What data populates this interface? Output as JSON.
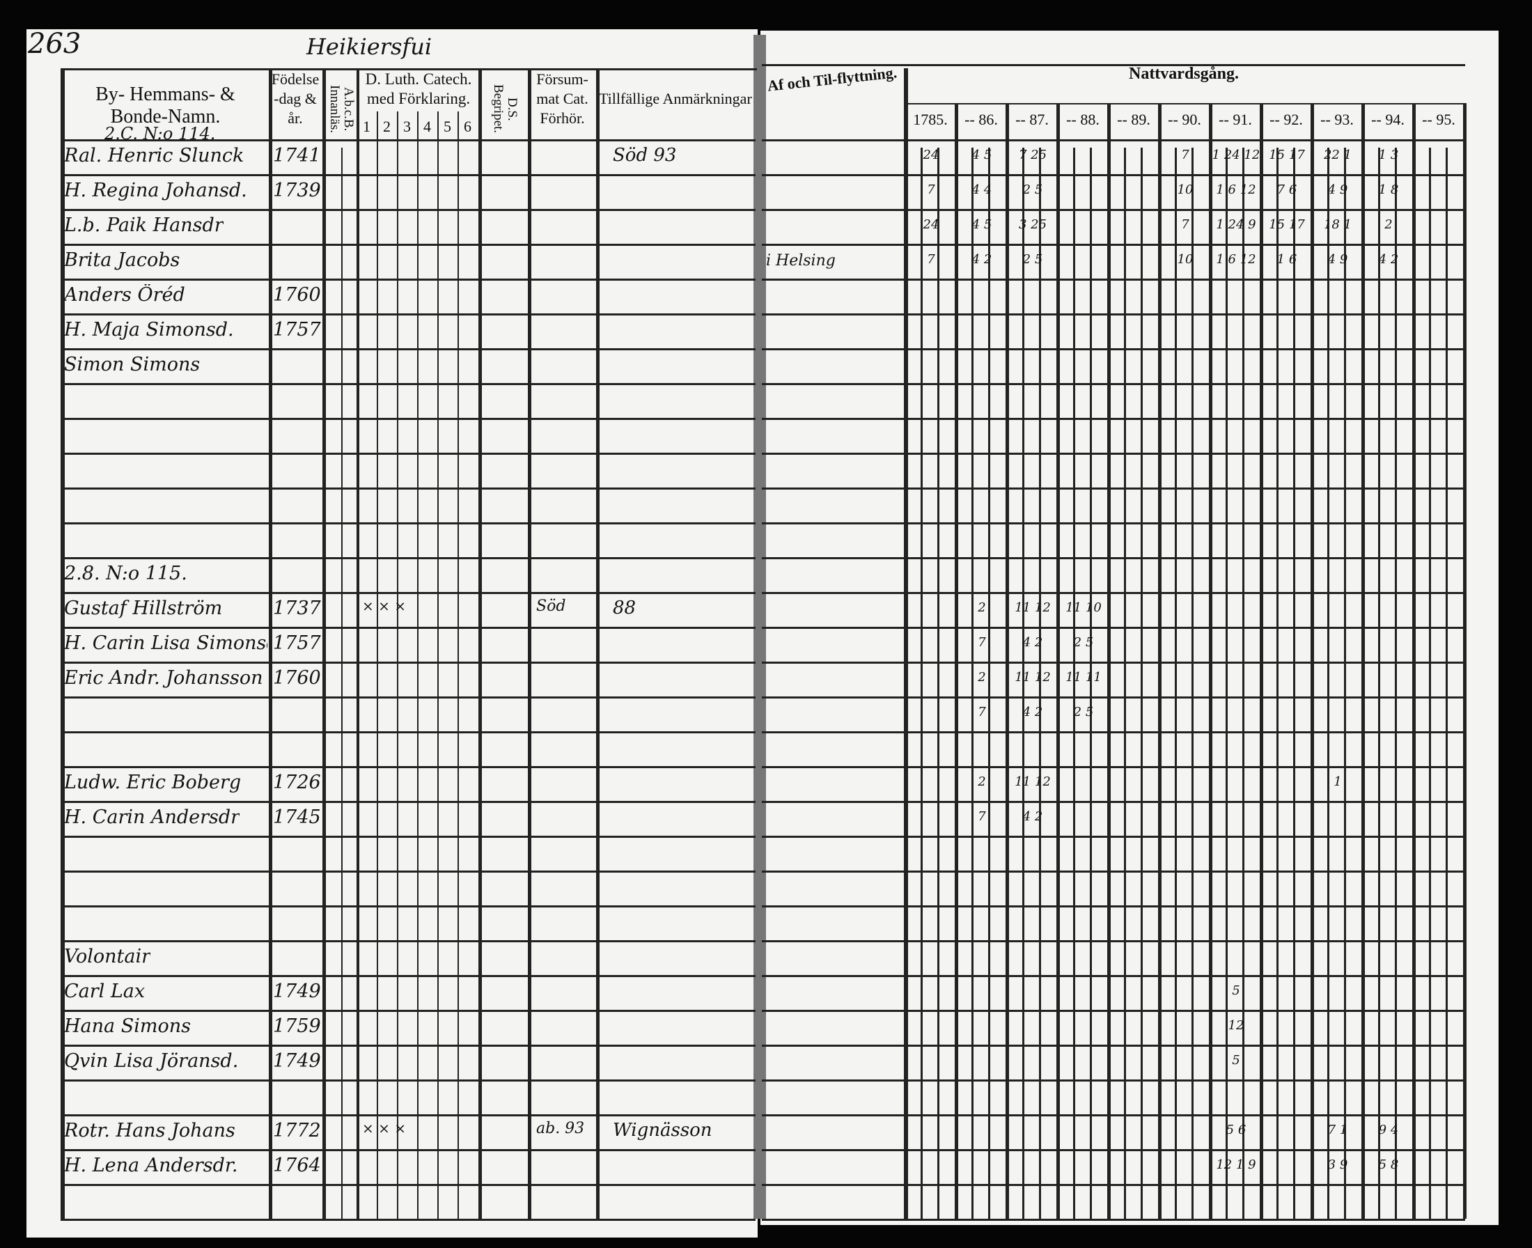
{
  "left_page": {
    "page_number": "263",
    "parish_title": "Heikiersfui",
    "headers": {
      "names": "By- Hemmans- & Bonde-Namn.",
      "birth": "Födelse-dag & år.",
      "abc": "A.b.c.B. Innanläs.",
      "catechism": "D. Luth. Catech. med Förklaring.",
      "catechism_parts": [
        "1",
        "2",
        "3",
        "4",
        "5",
        "6"
      ],
      "ds": "D.S. Begripet.",
      "missed": "Försum-mat Cat. Förhör.",
      "remarks": "Tillfällige Anmärkningar"
    },
    "household_heading": "2.C. N:o 114."
  },
  "right_page": {
    "headers": {
      "moving": "Af och Til-flyttning.",
      "communion": "Nattvardsgång.",
      "years": [
        "1785.",
        "-- 86.",
        "-- 87.",
        "-- 88.",
        "-- 89.",
        "-- 90.",
        "-- 91.",
        "-- 92.",
        "-- 93.",
        "-- 94.",
        "-- 95."
      ]
    }
  },
  "rows": [
    {
      "name": "Ral. Henric Slunck",
      "year": "1741",
      "remarks": "Söd 93",
      "move": "",
      "communion": [
        "24",
        "4 5",
        "7 25",
        "",
        "",
        "7",
        "1 24 12",
        "15 17",
        "22 1",
        "1 3",
        ""
      ]
    },
    {
      "name": "H. Regina Johansd.",
      "year": "1739",
      "remarks": "",
      "move": "",
      "communion": [
        "7",
        "4 4",
        "2 5",
        "",
        "",
        "10",
        "1 6 12",
        "7 6",
        "4 9",
        "1 8",
        ""
      ]
    },
    {
      "name": "L.b. Paik Hansdr",
      "year": "",
      "remarks": "",
      "move": "",
      "communion": [
        "24",
        "4 5",
        "3 25",
        "",
        "",
        "7",
        "1 24 9",
        "15 17",
        "18 1",
        "2",
        ""
      ]
    },
    {
      "name": "Brita Jacobs",
      "year": "",
      "remarks": "",
      "move": "i Helsing",
      "communion": [
        "7",
        "4 2",
        "2 5",
        "",
        "",
        "10",
        "1 6 12",
        "1 6",
        "4 9",
        "4 2",
        ""
      ]
    },
    {
      "name": "Anders Öréd",
      "year": "1760",
      "remarks": "",
      "move": "",
      "communion": []
    },
    {
      "name": "H. Maja Simonsd.",
      "year": "1757",
      "remarks": "",
      "move": "",
      "communion": []
    },
    {
      "name": "Simon Simons",
      "year": "",
      "remarks": "",
      "move": "",
      "communion": []
    },
    {
      "name": "",
      "year": "",
      "remarks": "",
      "move": "",
      "communion": []
    },
    {
      "name": "",
      "year": "",
      "remarks": "",
      "move": "",
      "communion": []
    },
    {
      "name": "",
      "year": "",
      "remarks": "",
      "move": "",
      "communion": []
    },
    {
      "name": "",
      "year": "",
      "remarks": "",
      "move": "",
      "communion": []
    },
    {
      "name": "",
      "year": "",
      "remarks": "",
      "move": "",
      "communion": []
    },
    {
      "name": "2.8. N:o 115.",
      "year": "",
      "remarks": "",
      "move": "",
      "communion": []
    },
    {
      "name": "Gustaf Hillström",
      "year": "1737",
      "catech": "×   ×  ×",
      "missed": "Söd",
      "remarks": "88",
      "move": "",
      "communion": [
        "",
        "2",
        "11 12",
        "11 10"
      ]
    },
    {
      "name": "H. Carin Lisa Simonsd.",
      "year": "1757",
      "remarks": "",
      "move": "",
      "communion": [
        "",
        "7",
        "4 2",
        "2 5"
      ]
    },
    {
      "name": "Eric Andr. Johansson",
      "year": "1760",
      "remarks": "",
      "move": "",
      "communion": [
        "",
        "2",
        "11 12",
        "11 11"
      ]
    },
    {
      "name": "",
      "year": "",
      "remarks": "",
      "move": "",
      "communion": [
        "",
        "7",
        "4 2",
        "2 5"
      ]
    },
    {
      "name": "",
      "year": "",
      "remarks": "",
      "move": "",
      "communion": []
    },
    {
      "name": "Ludw. Eric Boberg",
      "year": "1726",
      "remarks": "",
      "move": "",
      "communion": [
        "",
        "2",
        "11 12",
        "",
        "",
        "",
        "",
        "",
        "1",
        "",
        ""
      ]
    },
    {
      "name": "H. Carin Andersdr",
      "year": "1745",
      "remarks": "",
      "move": "",
      "communion": [
        "",
        "7",
        "4 2"
      ]
    },
    {
      "name": "",
      "year": "",
      "remarks": "",
      "move": "",
      "communion": []
    },
    {
      "name": "",
      "year": "",
      "remarks": "",
      "move": "",
      "communion": []
    },
    {
      "name": "",
      "year": "",
      "remarks": "",
      "move": "",
      "communion": []
    },
    {
      "name": "Volontair",
      "year": "",
      "remarks": "",
      "move": "",
      "communion": []
    },
    {
      "name": "Carl Lax",
      "year": "1749",
      "remarks": "",
      "move": "",
      "communion": [
        "",
        "",
        "",
        "",
        "",
        "",
        "5"
      ]
    },
    {
      "name": "Hana Simons",
      "year": "1759",
      "remarks": "",
      "move": "",
      "communion": [
        "",
        "",
        "",
        "",
        "",
        "",
        "12"
      ]
    },
    {
      "name": "Qvin Lisa Jöransd.",
      "year": "1749",
      "remarks": "",
      "move": "",
      "communion": [
        "",
        "",
        "",
        "",
        "",
        "",
        "5"
      ]
    },
    {
      "name": "",
      "year": "",
      "remarks": "",
      "move": "",
      "communion": []
    },
    {
      "name": "Rotr. Hans Johans",
      "year": "1772",
      "catech": "× × ×",
      "missed": "ab. 93",
      "remarks": "Wignässon",
      "move": "",
      "communion": [
        "",
        "",
        "",
        "",
        "",
        "",
        "5 6",
        "",
        "7 1",
        "9 4",
        ""
      ]
    },
    {
      "name": "H. Lena Andersdr.",
      "year": "1764",
      "remarks": "",
      "move": "",
      "communion": [
        "",
        "",
        "",
        "",
        "",
        "",
        "12 1 9",
        "",
        "3 9",
        "5 8",
        ""
      ]
    },
    {
      "name": "",
      "year": "",
      "remarks": "",
      "move": "",
      "communion": []
    }
  ]
}
